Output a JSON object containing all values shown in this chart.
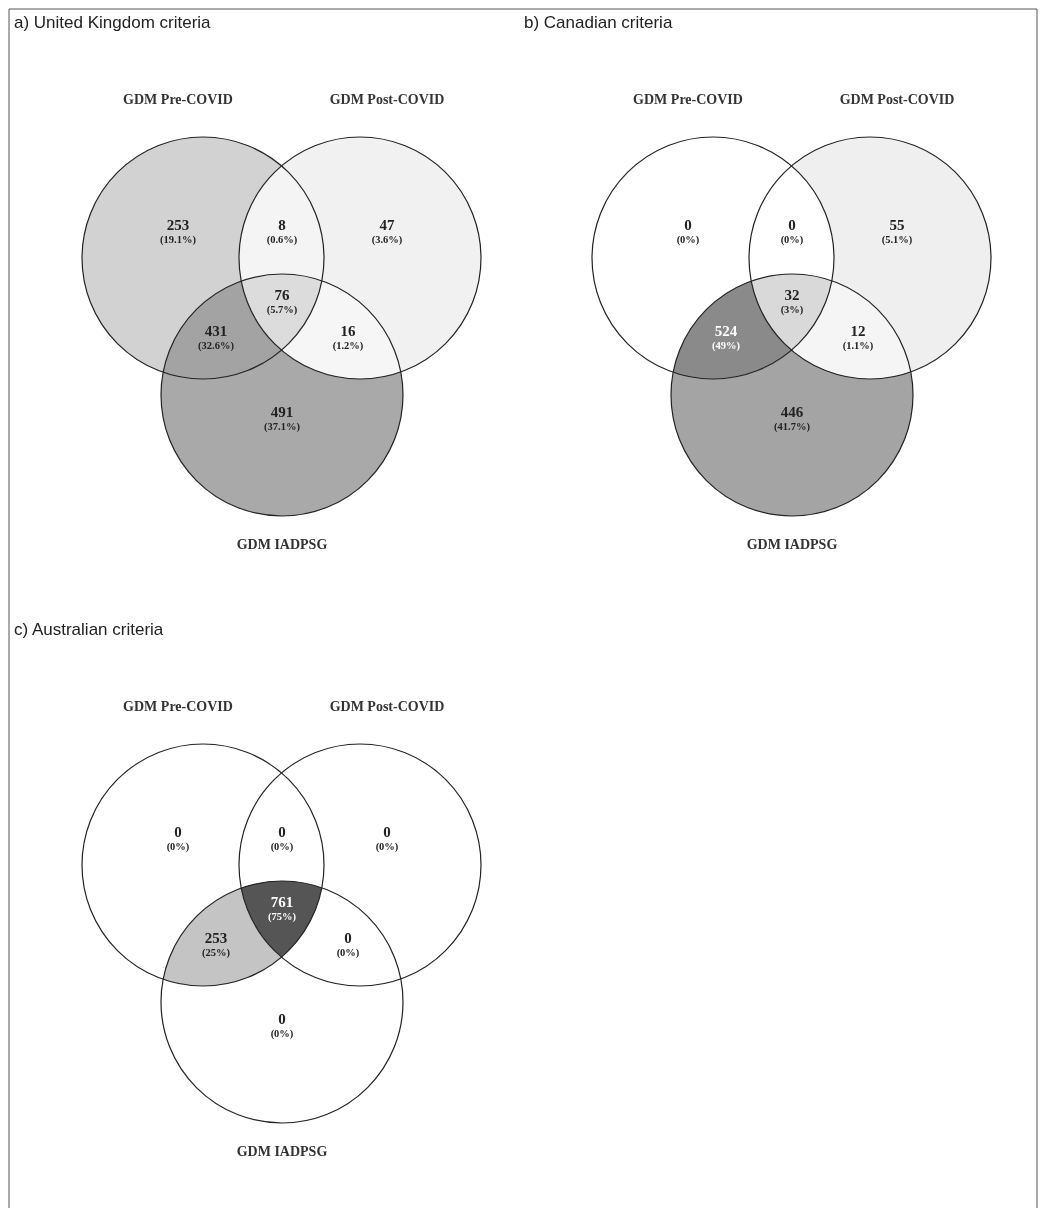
{
  "chart_data": [
    {
      "type": "other",
      "title": "a) United Kingdom criteria",
      "categories": [
        null,
        null,
        null,
        null,
        null,
        null,
        null
      ],
      "values": [
        253,
        8,
        47,
        76,
        431,
        16,
        491
      ],
      "data_labels": true,
      "colors": [
        "#d2d2d2",
        "#f4f4f4",
        "#f1f1f1",
        "#dcdcdc",
        "#a3a3a3",
        "#f6f6f6",
        "#a9a9a9"
      ],
      "annotations": [
        "GDM Pre-COVID",
        "GDM Post-COVID",
        "GDM IADPSG",
        "(19.1%)",
        "(0.6%)",
        "(3.6%)",
        "(5.7%)",
        "(32.6%)",
        "(1.2%)",
        "(37.1%)"
      ]
    },
    {
      "type": "other",
      "title": "b) Canadian criteria",
      "categories": [
        null,
        null,
        null,
        null,
        null,
        null,
        null
      ],
      "values": [
        0,
        0,
        55,
        32,
        524,
        12,
        446
      ],
      "data_labels": true,
      "colors": [
        "#ffffff",
        "#ffffff",
        "#efefef",
        "#d9d9d9",
        "#8a8a8a",
        "#f5f5f5",
        "#a4a4a4"
      ],
      "annotations": [
        "GDM Pre-COVID",
        "GDM Post-COVID",
        "GDM IADPSG",
        "(0%)",
        "(0%)",
        "(5.1%)",
        "(3%)",
        "(49%)",
        "(1.1%)",
        "(41.7%)"
      ]
    },
    {
      "type": "other",
      "title": "c) Australian criteria",
      "categories": [
        null,
        null,
        null,
        null,
        null,
        null,
        null
      ],
      "values": [
        0,
        0,
        0,
        761,
        253,
        0,
        0
      ],
      "data_labels": true,
      "colors": [
        "#ffffff",
        "#ffffff",
        "#ffffff",
        "#555555",
        "#c4c4c4",
        "#ffffff",
        "#ffffff"
      ],
      "annotations": [
        "GDM Pre-COVID",
        "GDM Post-COVID",
        "GDM IADPSG",
        "(0%)",
        "(0%)",
        "(0%)",
        "(75%)",
        "(25%)",
        "(0%)",
        "(0%)"
      ]
    }
  ]
}
